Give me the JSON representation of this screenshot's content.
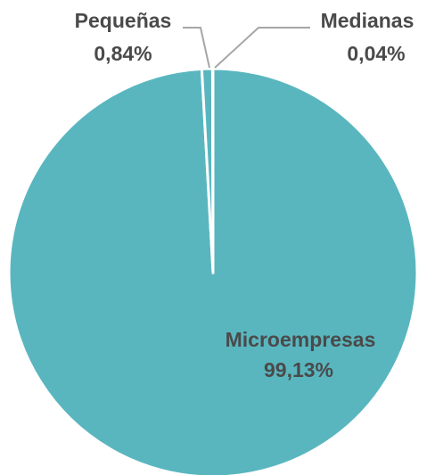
{
  "chart_data": {
    "type": "pie",
    "title": "",
    "legend": "none",
    "slices": [
      {
        "name": "Microempresas",
        "value": 99.13,
        "label": "99,13%",
        "color": "#59b6bf"
      },
      {
        "name": "Pequeñas",
        "value": 0.84,
        "label": "0,84%",
        "color": "#59b6bf"
      },
      {
        "name": "Medianas",
        "value": 0.04,
        "label": "0,04%",
        "color": "#59b6bf"
      }
    ],
    "separator_color": "#ffffff",
    "label_color": "#4a4a4a",
    "leader_line_color": "#a6a6a6"
  }
}
